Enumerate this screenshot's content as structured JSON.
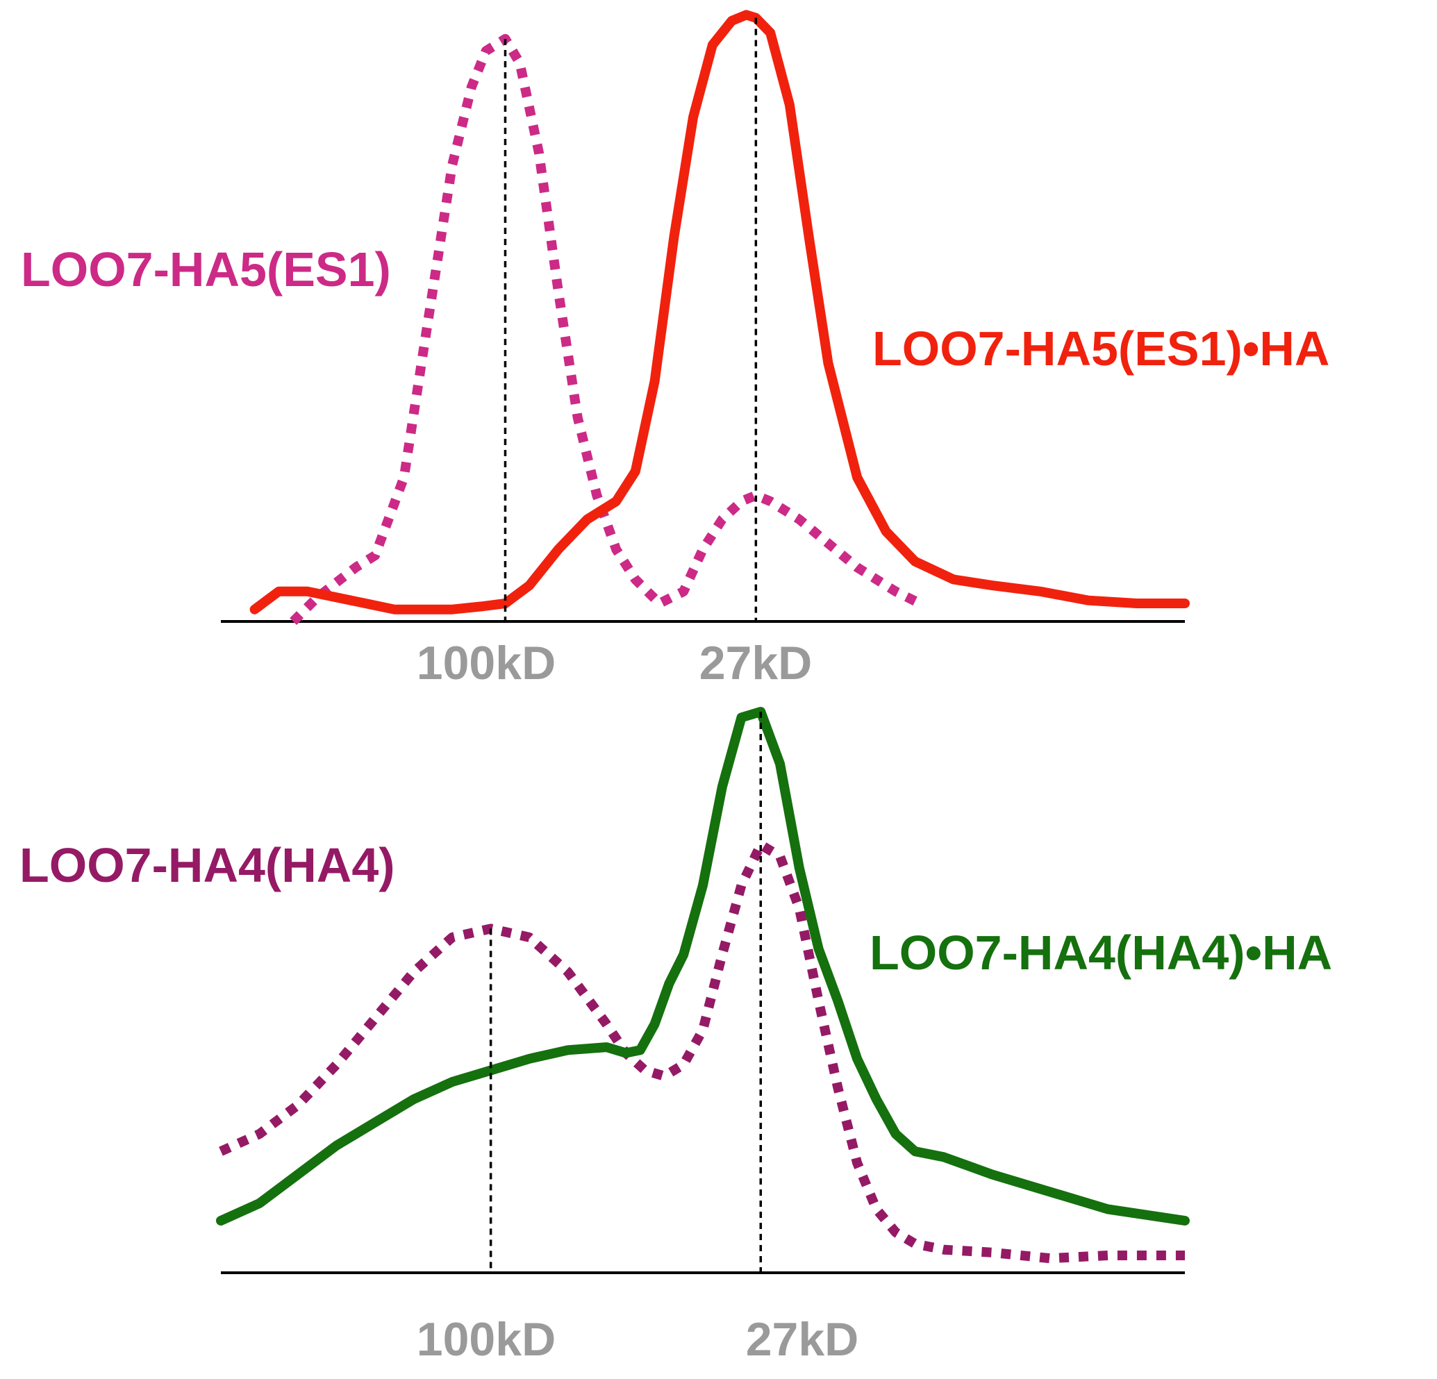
{
  "colors": {
    "es1_free": "#cc2a86",
    "es1_complex": "#f0220e",
    "ha4_free": "#951a65",
    "ha4_complex": "#15700e",
    "tick_label": "#9a9a9a",
    "axis": "#000000",
    "marker_line": "#000000"
  },
  "chart_data": [
    {
      "type": "line",
      "title": "",
      "xlabel": "",
      "ylabel": "",
      "grid": false,
      "y_axis_shown": false,
      "xlim": [
        0,
        100
      ],
      "ylim": [
        0,
        100
      ],
      "marker_lines": [
        {
          "label": "100kD",
          "x": 29.5
        },
        {
          "label": "27kD",
          "x": 55.5
        }
      ],
      "series": [
        {
          "name": "LOO7-HA5(ES1)",
          "style": "dotted",
          "color": "#cc2a86",
          "x": [
            7.5,
            10,
            14,
            16,
            19,
            21,
            24,
            26,
            27.5,
            29.5,
            31,
            33,
            35,
            37,
            39,
            41,
            43,
            45.5,
            48,
            50,
            52,
            54,
            55.5,
            57,
            60,
            63,
            66,
            70,
            72.5
          ],
          "y": [
            0,
            4,
            9,
            11,
            24,
            45,
            76,
            89,
            95,
            97,
            93,
            78,
            55,
            34,
            21,
            12,
            7,
            3,
            5,
            12,
            17,
            20,
            21,
            20,
            17,
            13,
            9,
            5,
            3
          ]
        },
        {
          "name": "LOO7-HA5(ES1)•HA",
          "style": "solid",
          "color": "#f0220e",
          "x": [
            3.5,
            6,
            9,
            12,
            15,
            18,
            21,
            24,
            27,
            29.5,
            32,
            35,
            38,
            41,
            43,
            45,
            47,
            49,
            51,
            53,
            54.5,
            55.5,
            57,
            59,
            61,
            63,
            66,
            69,
            72,
            76,
            80,
            85,
            90,
            95,
            100
          ],
          "y": [
            2,
            5,
            5,
            4,
            3,
            2,
            2,
            2,
            2.5,
            3,
            6,
            12,
            17,
            20,
            25,
            40,
            64,
            84,
            96,
            100,
            101,
            100.5,
            98,
            86,
            64,
            43,
            24,
            15,
            10,
            7,
            6,
            5,
            3.5,
            3,
            3
          ]
        }
      ]
    },
    {
      "type": "line",
      "title": "",
      "xlabel": "",
      "ylabel": "",
      "grid": false,
      "y_axis_shown": false,
      "xlim": [
        0,
        100
      ],
      "ylim": [
        0,
        100
      ],
      "marker_lines": [
        {
          "label": "100kD",
          "x": 28
        },
        {
          "label": "27kD",
          "x": 56
        }
      ],
      "series": [
        {
          "name": "LOO7-HA4(HA4)",
          "style": "dotted",
          "color": "#951a65",
          "x": [
            0,
            4,
            8,
            12,
            16,
            20,
            24,
            28,
            32,
            36,
            40,
            42,
            44,
            46,
            48,
            50,
            52,
            54,
            56,
            58,
            60,
            62,
            64,
            66,
            68,
            70,
            72,
            75,
            80,
            86,
            92,
            100
          ],
          "y": [
            21,
            24,
            29,
            36,
            44,
            52,
            58,
            59.5,
            58,
            52,
            43,
            38,
            35,
            34,
            36,
            42,
            55,
            67,
            74,
            72,
            63,
            47,
            32,
            19,
            11,
            7,
            5,
            4,
            3.5,
            2.5,
            3,
            3
          ]
        },
        {
          "name": "LOO7-HA4(HA4)•HA",
          "style": "solid",
          "color": "#15700e",
          "x": [
            0,
            4,
            8,
            12,
            16,
            20,
            24,
            28,
            32,
            36,
            40,
            42,
            43.5,
            45,
            46.5,
            48,
            50,
            52,
            54,
            56,
            58,
            60,
            62,
            64,
            66,
            68,
            70,
            72,
            75,
            80,
            86,
            92,
            100
          ],
          "y": [
            9,
            12,
            17,
            22,
            26,
            30,
            33,
            35,
            37,
            38.5,
            39,
            38,
            38.5,
            43,
            50,
            55,
            67,
            84,
            96,
            97,
            88,
            70,
            56,
            47,
            37,
            30,
            24,
            21,
            20,
            17,
            14,
            11,
            9
          ]
        }
      ]
    }
  ]
}
